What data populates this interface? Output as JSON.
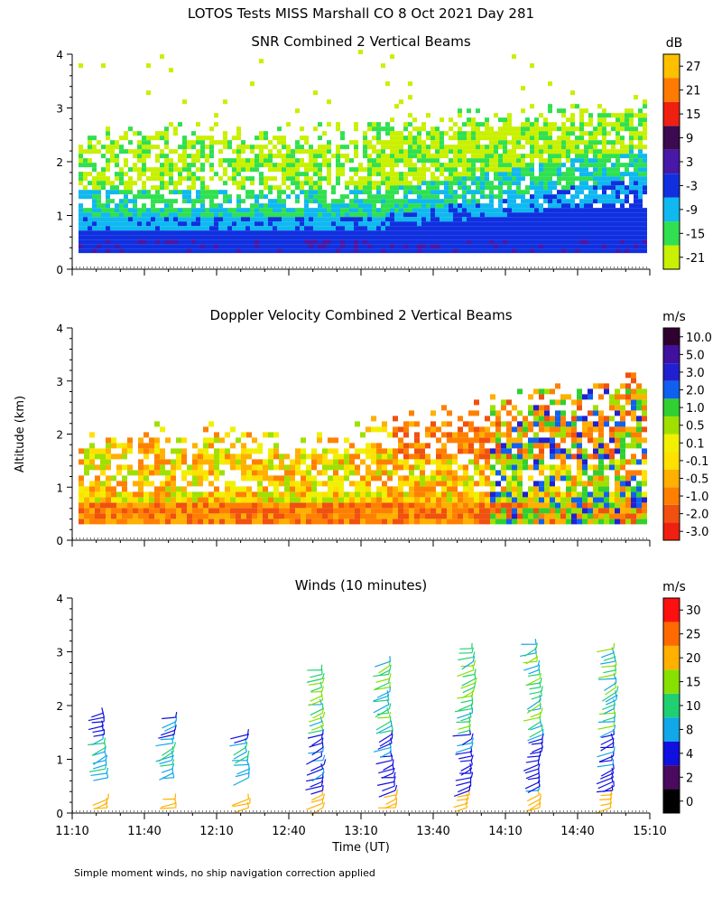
{
  "page": {
    "title": "LOTOS Tests MISS Marshall CO   8 Oct 2021 Day 281",
    "footer": "Simple moment winds, no ship navigation correction applied"
  },
  "chart_data": [
    {
      "type": "heatmap",
      "title": "SNR Combined 2 Vertical Beams",
      "ylabel": "",
      "ylim": [
        0,
        4
      ],
      "yticks": [
        "0",
        "1",
        "2",
        "3",
        "4"
      ],
      "colorbar_unit": "dB",
      "colorbar_labels": [
        "-21",
        "-15",
        "-9",
        "-3",
        "3",
        "9",
        "15",
        "21",
        "27"
      ],
      "colors": [
        "#c8f000",
        "#30e050",
        "#10b8f0",
        "#1030e0",
        "#4818a8",
        "#3c0a50",
        "#f02010",
        "#ff7a00",
        "#ffc000"
      ]
    },
    {
      "type": "heatmap",
      "title": "Doppler Velocity Combined 2 Vertical Beams",
      "ylabel": "Altitude (km)",
      "ylim": [
        0,
        4
      ],
      "yticks": [
        "0",
        "1",
        "2",
        "3",
        "4"
      ],
      "colorbar_unit": "m/s",
      "colorbar_labels": [
        "-3.0",
        "-2.0",
        "-1.0",
        "-0.5",
        "-0.1",
        "0.1",
        "0.5",
        "1.0",
        "2.0",
        "3.0",
        "5.0",
        "10.0"
      ],
      "colors": [
        "#f02010",
        "#f05010",
        "#ff8000",
        "#ffb000",
        "#ffe000",
        "#f0f000",
        "#a0e000",
        "#30d030",
        "#1060f0",
        "#2020d0",
        "#4010a0",
        "#300030"
      ]
    },
    {
      "type": "scatter",
      "title": "Winds (10 minutes)",
      "xlabel": "Time (UT)",
      "ylim": [
        0,
        4
      ],
      "yticks": [
        "0",
        "1",
        "2",
        "3",
        "4"
      ],
      "xticks": [
        "11:10",
        "11:40",
        "12:10",
        "12:40",
        "13:10",
        "13:40",
        "14:10",
        "14:40",
        "15:10"
      ],
      "colorbar_unit": "m/s",
      "colorbar_labels": [
        "0",
        "2",
        "4",
        "8",
        "10",
        "15",
        "20",
        "25",
        "30"
      ],
      "colors": [
        "#000000",
        "#4a0a60",
        "#1010e0",
        "#10a8e8",
        "#20d070",
        "#88e000",
        "#ffb000",
        "#ff6a00",
        "#ff1010"
      ]
    }
  ]
}
